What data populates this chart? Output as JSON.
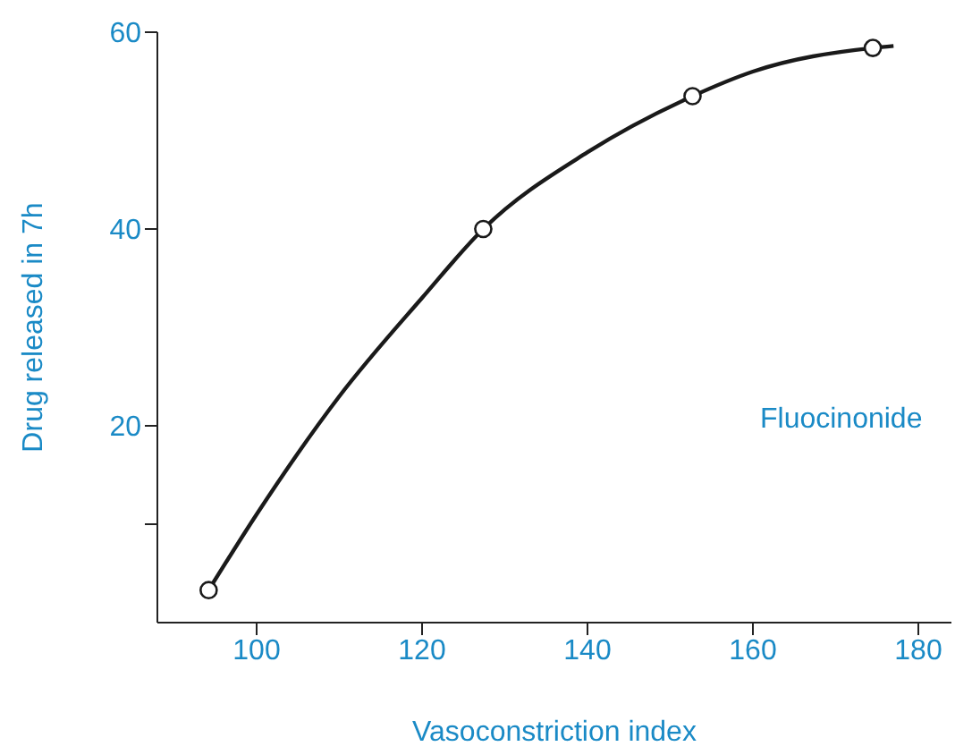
{
  "chart_data": {
    "type": "scatter",
    "xlabel": "Vasoconstriction index",
    "ylabel": "Drug released in 7h",
    "annotations": [
      "Fluocinonide"
    ],
    "xlim": [
      88,
      184
    ],
    "xticks": [
      100,
      120,
      140,
      160,
      180
    ],
    "ylim": [
      0,
      60
    ],
    "yticks": [
      {
        "value": 10,
        "label": null
      },
      20,
      40,
      60
    ],
    "grid": false,
    "series": [
      {
        "type": "line",
        "color": "#1a1a1a",
        "marker": "none",
        "line_style": "solid",
        "x": [
          94.2,
          100,
          110,
          120,
          127.4,
          140,
          152.7,
          160,
          174.5,
          177
        ],
        "values": [
          3.3,
          11,
          23,
          33,
          40,
          47.8,
          53.5,
          56,
          58.4,
          58.6
        ]
      },
      {
        "color": "#1a1a1a",
        "marker": "circle",
        "x": [
          94.2,
          127.4,
          152.7,
          174.5
        ],
        "values": [
          3.3,
          40,
          53.5,
          58.4
        ]
      }
    ]
  }
}
